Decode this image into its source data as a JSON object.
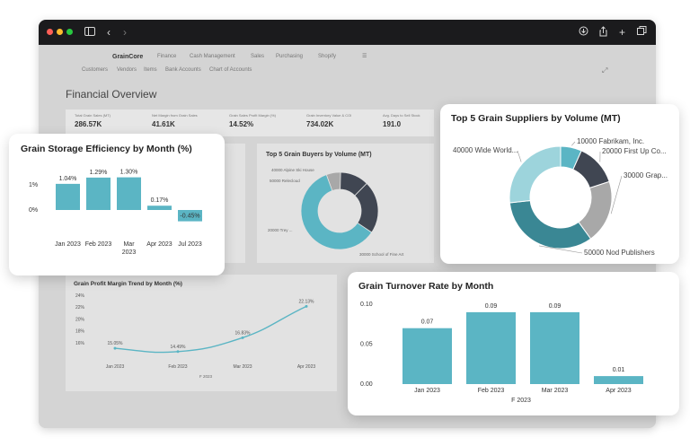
{
  "colors": {
    "teal": "#5bb5c4",
    "teal_dark": "#3a8794",
    "navy": "#404652",
    "gray": "#a8a8a8",
    "light_teal": "#9dd4dc"
  },
  "browser": {
    "toolbar_icons": [
      "sidebar-icon",
      "back-icon",
      "forward-icon",
      "download-icon",
      "share-icon",
      "new-tab-icon",
      "tabs-icon"
    ]
  },
  "nav": {
    "brand": "GrainCore",
    "menus": [
      "Finance",
      "Cash Management",
      "Sales",
      "Purchasing",
      "Shopify"
    ],
    "sub_links": [
      "Customers",
      "Vendors",
      "Items",
      "Bank Accounts",
      "Chart of Accounts"
    ]
  },
  "page_title": "Financial Overview",
  "kpis": [
    {
      "label": "Total Grain Sales (MT)",
      "value": "286.57K"
    },
    {
      "label": "Net Margin from Grain Sales",
      "value": "41.61K"
    },
    {
      "label": "Grain Sales Profit Margin (%)",
      "value": "14.52%"
    },
    {
      "label": "Grain Inventory Value & COI",
      "value": "734.02K"
    },
    {
      "label": "Avg. Days to Sell Stock",
      "value": "191.0"
    }
  ],
  "buyers_card": {
    "title": "Top 5 Grain Buyers by Volume (MT)",
    "labels": [
      "40000 Alpine Ski House",
      "50000 Relecloud",
      "20000 Trey ...",
      "30000 School of Fine Art"
    ]
  },
  "profit_card": {
    "title": "Grain Profit Margin Trend by Month (%)",
    "axis_title": "F 2023"
  },
  "storage_card": {
    "title": "Grain Storage Efficiency by Month (%)"
  },
  "suppliers_card": {
    "title": "Top 5 Grain Suppliers by Volume (MT)"
  },
  "turnover_card": {
    "title": "Grain Turnover Rate by Month",
    "axis_title": "F 2023"
  },
  "chart_data": [
    {
      "type": "bar",
      "title": "Grain Storage Efficiency by Month (%)",
      "categories": [
        "Jan 2023",
        "Feb 2023",
        "Mar 2023",
        "Apr 2023",
        "Jul 2023"
      ],
      "values": [
        1.04,
        1.29,
        1.3,
        0.17,
        -0.45
      ],
      "data_labels": [
        "1.04%",
        "1.29%",
        "1.30%",
        "0.17%",
        "-0.45%"
      ],
      "y_ticks": [
        "1%",
        "0%"
      ],
      "ylim": [
        -0.6,
        1.6
      ]
    },
    {
      "type": "pie",
      "title": "Top 5 Grain Suppliers by Volume (MT)",
      "labels": [
        "10000 Fabrikam, Inc.",
        "20000 First Up Co...",
        "30000 Grap...",
        "50000 Nod Publishers",
        "40000 Wide World..."
      ],
      "values": [
        10000,
        20000,
        30000,
        50000,
        40000
      ],
      "colors": [
        "#5bb5c4",
        "#404652",
        "#a8a8a8",
        "#3a8794",
        "#9dd4dc"
      ]
    },
    {
      "type": "bar",
      "title": "Grain Turnover Rate by Month",
      "categories": [
        "Jan 2023",
        "Feb 2023",
        "Mar 2023",
        "Apr 2023"
      ],
      "values": [
        0.07,
        0.09,
        0.09,
        0.01
      ],
      "data_labels": [
        "0.07",
        "0.09",
        "0.09",
        "0.01"
      ],
      "y_ticks": [
        "0.10",
        "0.05",
        "0.00"
      ],
      "ylim": [
        0,
        0.1
      ],
      "xlabel": "F 2023"
    },
    {
      "type": "line",
      "title": "Grain Profit Margin Trend by Month (%)",
      "categories": [
        "Jan 2023",
        "Feb 2023",
        "Mar 2023",
        "Apr 2023"
      ],
      "values": [
        15.05,
        14.49,
        16.83,
        22.13
      ],
      "data_labels": [
        "15.05%",
        "14.49%",
        "16.83%",
        "22.13%"
      ],
      "y_ticks": [
        "24%",
        "22%",
        "20%",
        "18%",
        "16%"
      ],
      "ylim": [
        14,
        24
      ],
      "xlabel": "F 2023"
    },
    {
      "type": "pie",
      "title": "Top 5 Grain Buyers by Volume (MT)",
      "labels": [
        "40000 Alpine Ski House",
        "50000 Relecloud",
        "20000 Trey ...",
        "30000 School of Fine Art"
      ],
      "values": [
        40000,
        50000,
        20000,
        30000
      ],
      "colors": [
        "#a8a8a8",
        "#404652",
        "#404652",
        "#5bb5c4"
      ]
    }
  ]
}
